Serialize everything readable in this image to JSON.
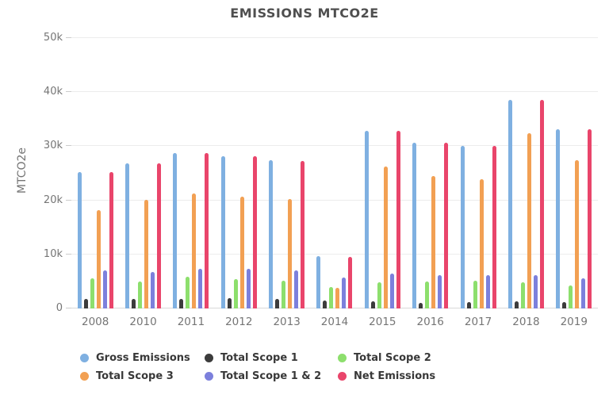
{
  "title": "EMISSIONS MTCO2E",
  "chart_data": {
    "type": "bar",
    "title": "EMISSIONS MTCO2E",
    "xlabel": "",
    "ylabel": "MTCO2e",
    "ylim": [
      0,
      50000
    ],
    "ytick_values": [
      0,
      10000,
      20000,
      30000,
      40000,
      50000
    ],
    "ytick_labels": [
      "0",
      "10k",
      "20k",
      "30k",
      "40k",
      "50k"
    ],
    "grid": true,
    "legend_position": "bottom",
    "background": "#ffffff",
    "categories": [
      "2008",
      "2010",
      "2011",
      "2012",
      "2013",
      "2014",
      "2015",
      "2016",
      "2017",
      "2018",
      "2019"
    ],
    "series": [
      {
        "name": "Gross Emissions",
        "color": "#7FB0E1",
        "values": [
          25300,
          26900,
          28800,
          28100,
          27400,
          9700,
          32800,
          30700,
          30100,
          38500,
          33100
        ]
      },
      {
        "name": "Total Scope 1",
        "color": "#3C3C3C",
        "values": [
          1700,
          1700,
          1800,
          1900,
          1800,
          1500,
          1300,
          1100,
          1200,
          1300,
          1200
        ]
      },
      {
        "name": "Total Scope 2",
        "color": "#8DDF6D",
        "values": [
          5600,
          5000,
          5800,
          5500,
          5200,
          4000,
          4900,
          5000,
          5100,
          4800,
          4300
        ]
      },
      {
        "name": "Total Scope 3",
        "color": "#F2A053",
        "values": [
          18200,
          20100,
          21200,
          20700,
          20300,
          3800,
          26300,
          24500,
          23900,
          32400,
          27400
        ]
      },
      {
        "name": "Total Scope 1 & 2",
        "color": "#7C80DC",
        "values": [
          7100,
          6700,
          7400,
          7300,
          7100,
          5700,
          6500,
          6200,
          6100,
          6100,
          5600
        ]
      },
      {
        "name": "Net Emissions",
        "color": "#E9456B",
        "values": [
          25200,
          26900,
          28800,
          28100,
          27300,
          9500,
          32800,
          30700,
          30000,
          38500,
          33200
        ]
      }
    ]
  }
}
